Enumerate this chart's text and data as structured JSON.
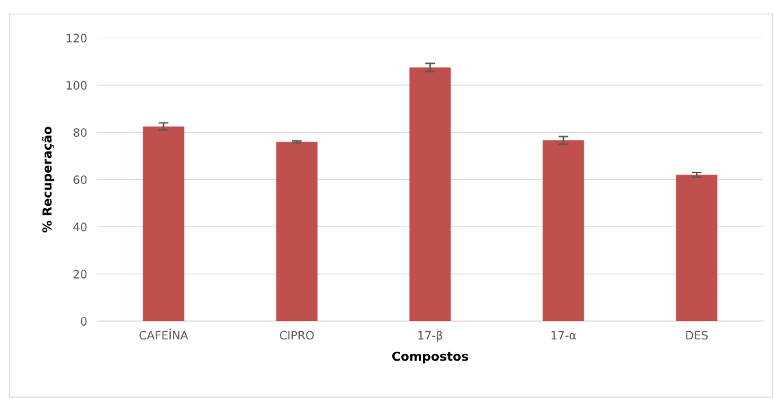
{
  "chart_data": {
    "type": "bar",
    "xlabel": "Compostos",
    "ylabel": "% Recuperação",
    "categories": [
      "CAFEÍNA",
      "CIPRO",
      "17-β",
      "17-α",
      "DES"
    ],
    "values": [
      82.5,
      76.0,
      107.5,
      76.6,
      62.0
    ],
    "errors": [
      1.5,
      0.4,
      1.7,
      1.6,
      1.0
    ],
    "color": "#c0504d",
    "ylim": [
      0,
      120
    ],
    "yticks": [
      0,
      20,
      40,
      60,
      80,
      100,
      120
    ],
    "grid": "y"
  }
}
